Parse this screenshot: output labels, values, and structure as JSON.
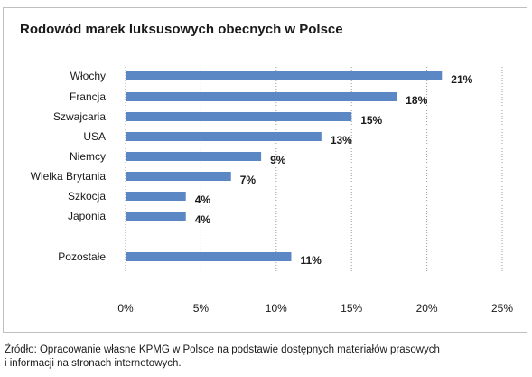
{
  "chart_data": {
    "type": "bar",
    "orientation": "horizontal",
    "title": "Rodowód marek luksusowych obecnych w Polsce",
    "categories": [
      "Włochy",
      "Francja",
      "Szwajcaria",
      "USA",
      "Niemcy",
      "Wielka Brytania",
      "Szkocja",
      "Japonia",
      "Pozostałe"
    ],
    "values": [
      21,
      18,
      15,
      13,
      9,
      7,
      4,
      4,
      11
    ],
    "data_labels": [
      "21%",
      "18%",
      "15%",
      "13%",
      "9%",
      "7%",
      "4%",
      "4%",
      "11%"
    ],
    "xlim": [
      0,
      25
    ],
    "x_ticks": [
      "0%",
      "5%",
      "10%",
      "15%",
      "20%",
      "25%"
    ],
    "grid": "vertical dotted",
    "bar_color": "#5b87c5",
    "xlabel": "",
    "ylabel": ""
  },
  "source_lines": [
    "Źródło: Opracowanie własne KPMG w Polsce na podstawie dostępnych materiałów prasowych",
    "i informacji na stronach internetowych."
  ]
}
